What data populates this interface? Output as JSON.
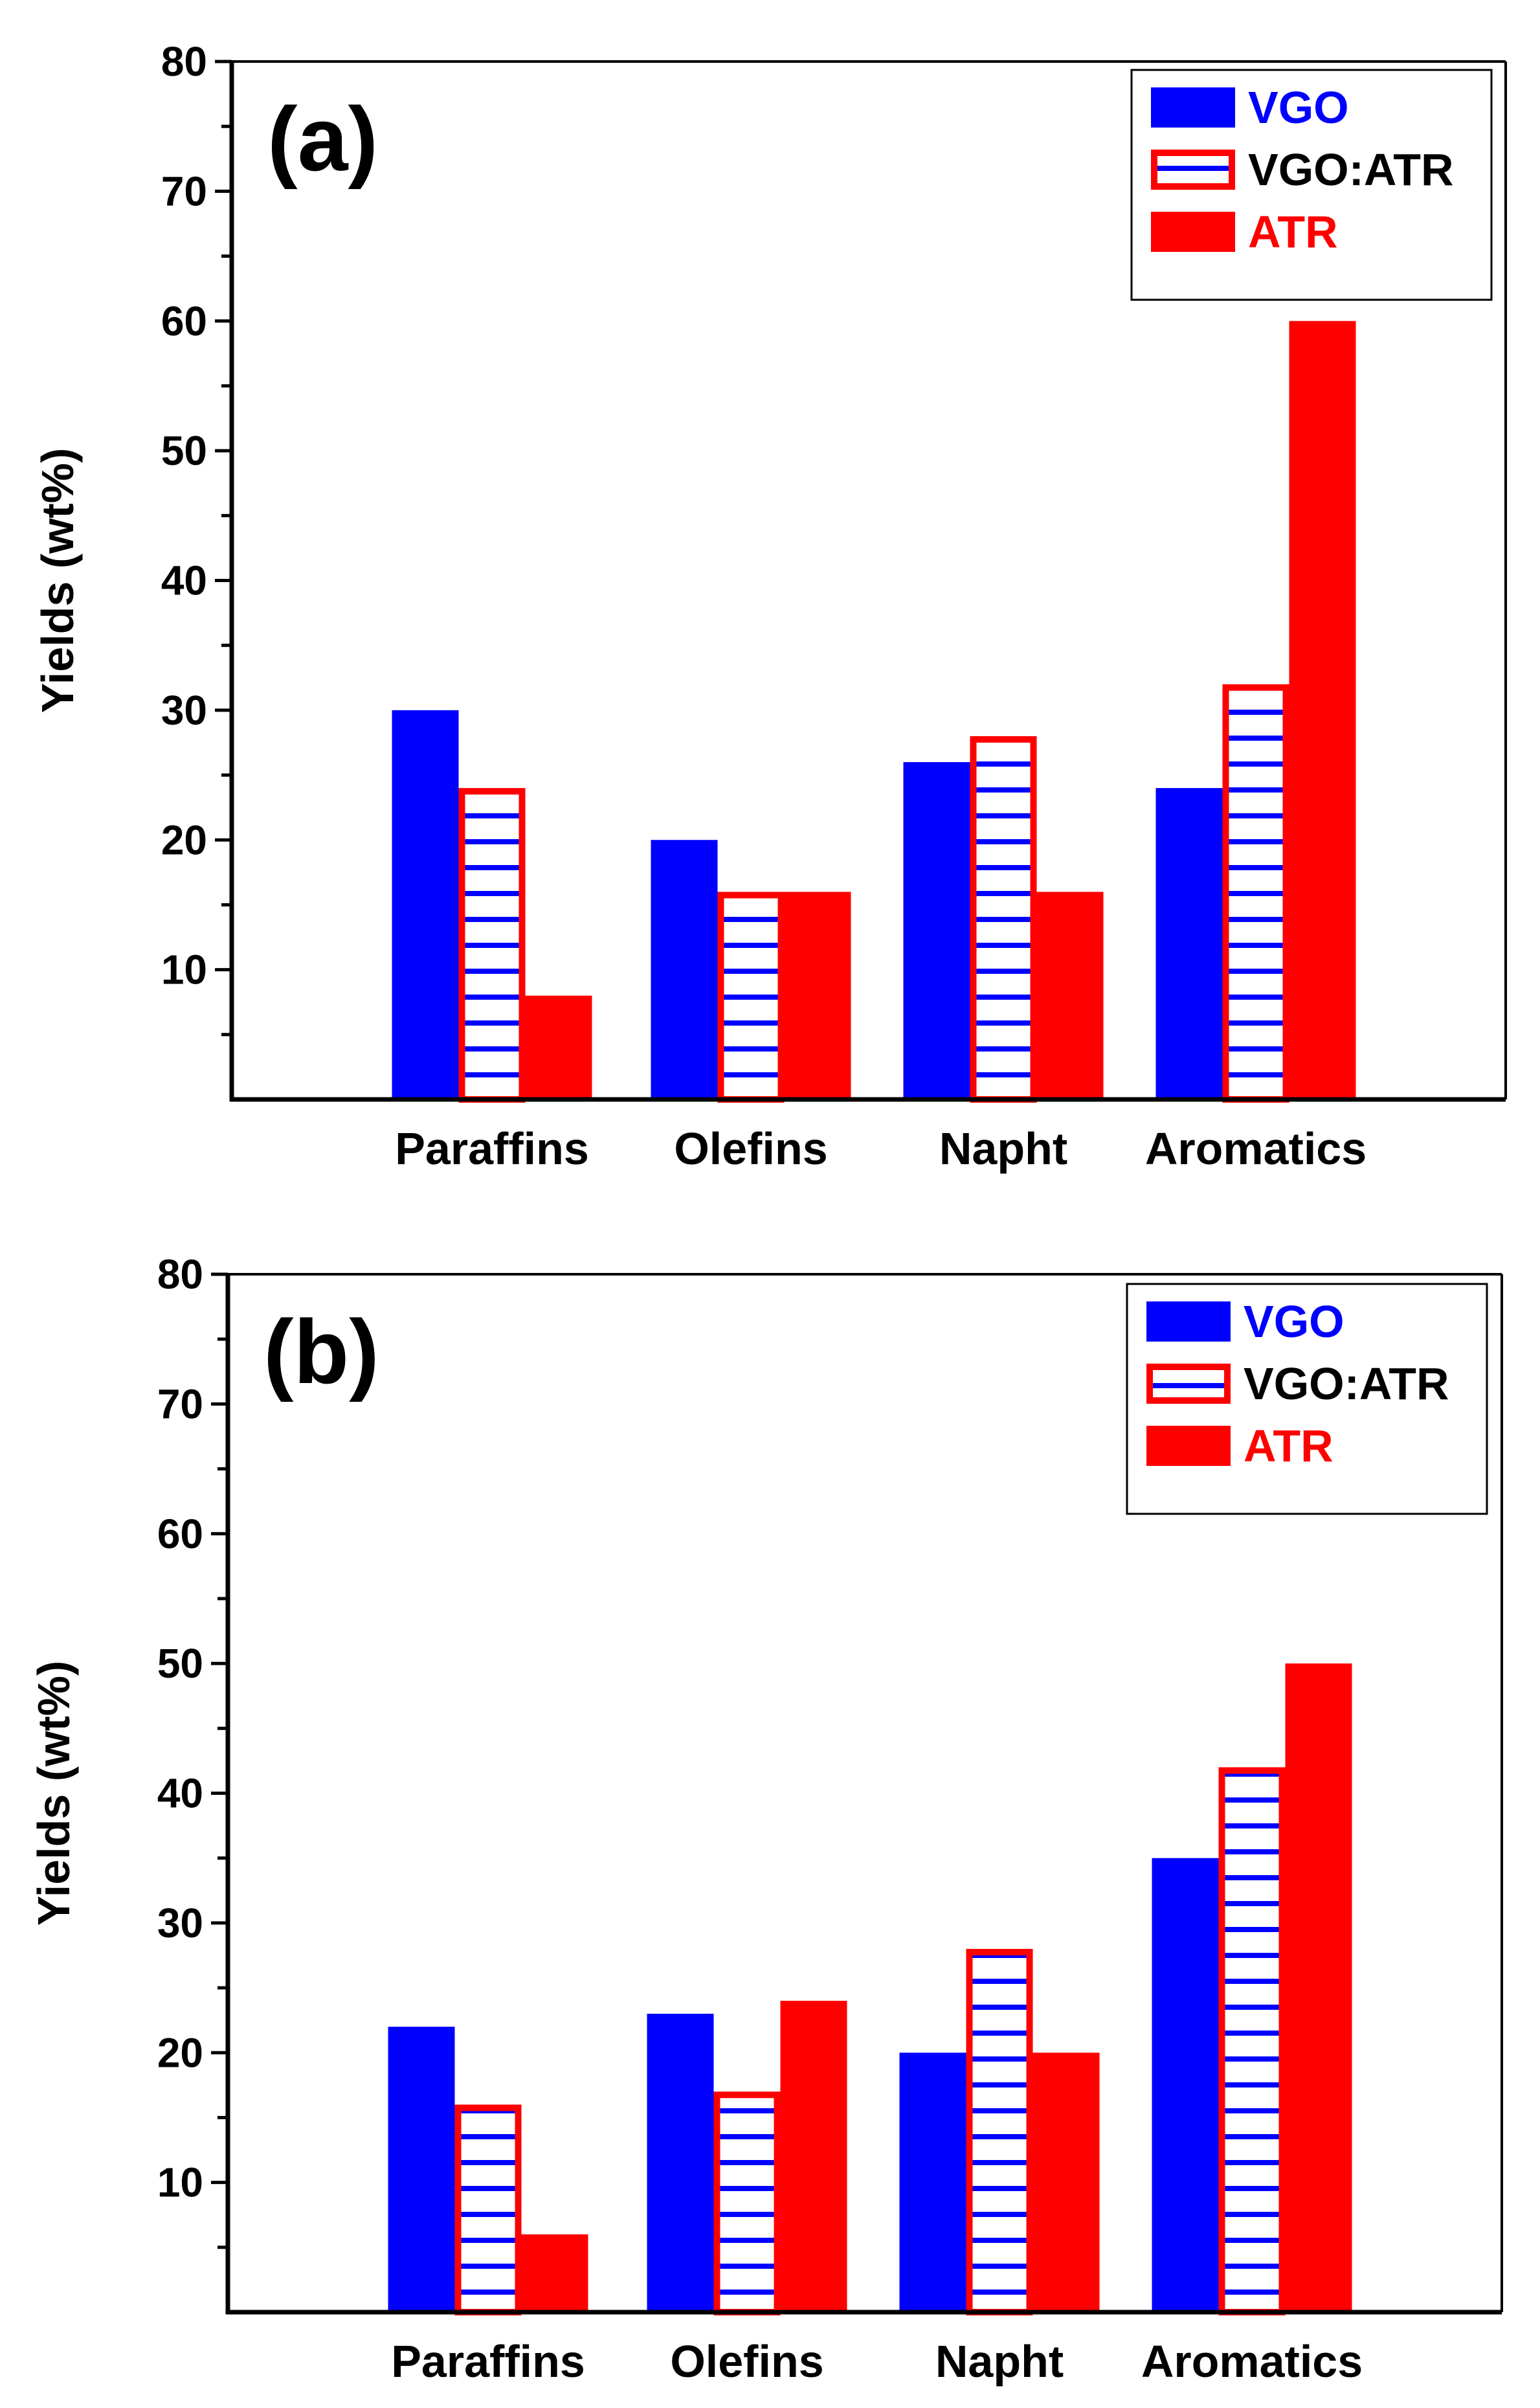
{
  "colors": {
    "vgo": "#0000ff",
    "atr": "#ff0000",
    "mix_border": "#ff0000",
    "mix_stripe": "#0000ff",
    "axis": "#000000",
    "text": "#000000"
  },
  "chart_data": [
    {
      "type": "bar",
      "panel_label": "(a)",
      "ylabel": "Yields (wt%)",
      "xlabel": "",
      "ylim": [
        0,
        80
      ],
      "yticks": [
        10,
        20,
        30,
        40,
        50,
        60,
        70,
        80
      ],
      "categories": [
        "Paraffins",
        "Olefins",
        "Napht",
        "Aromatics"
      ],
      "series": [
        {
          "name": "VGO",
          "key": "vgo",
          "values": [
            30,
            20,
            26,
            24
          ]
        },
        {
          "name": "VGO:ATR",
          "key": "mix",
          "values": [
            24,
            16,
            28,
            32
          ]
        },
        {
          "name": "ATR",
          "key": "atr",
          "values": [
            8,
            16,
            16,
            60
          ]
        }
      ],
      "legend_position": "top-right"
    },
    {
      "type": "bar",
      "panel_label": "(b)",
      "ylabel": "Yields (wt%)",
      "xlabel": "",
      "ylim": [
        0,
        80
      ],
      "yticks": [
        10,
        20,
        30,
        40,
        50,
        60,
        70,
        80
      ],
      "categories": [
        "Paraffins",
        "Olefins",
        "Napht",
        "Aromatics"
      ],
      "series": [
        {
          "name": "VGO",
          "key": "vgo",
          "values": [
            22,
            23,
            20,
            35
          ]
        },
        {
          "name": "VGO:ATR",
          "key": "mix",
          "values": [
            16,
            17,
            28,
            42
          ]
        },
        {
          "name": "ATR",
          "key": "atr",
          "values": [
            6,
            24,
            20,
            50
          ]
        }
      ],
      "legend_position": "top-right"
    }
  ]
}
